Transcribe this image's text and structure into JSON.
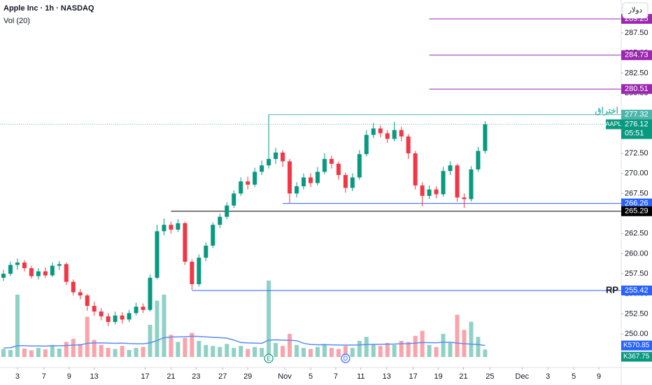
{
  "header": {
    "symbol_line": "Apple Inc · 1h · NASDAQ",
    "indicator": "Vol (20)",
    "currency_button": "دولار"
  },
  "chart_data": {
    "type": "candlestick",
    "up_color": "#089981",
    "down_color": "#f23645",
    "volume_ma_color": "#5b8def",
    "open": [
      257.0,
      257.5,
      258.6,
      258.9,
      258.2,
      257.2,
      257.8,
      257.3,
      258.5,
      258.7,
      256.5,
      255.2,
      254.8,
      253.5,
      252.8,
      252.2,
      251.5,
      252.3,
      251.8,
      252.6,
      253.4,
      253.0,
      257.0,
      262.8,
      263.6,
      263.0,
      263.8,
      259.0,
      256.2,
      259.5,
      261.0,
      263.6,
      264.6,
      266.0,
      267.5,
      269.0,
      268.6,
      270.2,
      271.0,
      271.8,
      272.6,
      271.5,
      267.5,
      268.4,
      269.5,
      268.8,
      270.2,
      271.8,
      271.2,
      269.8,
      268.2,
      269.5,
      272.4,
      274.8,
      275.6,
      275.0,
      274.3,
      275.4,
      274.6,
      272.5,
      268.5,
      267.2,
      268.0,
      267.4,
      270.3,
      271.0,
      267.0,
      266.8,
      270.5,
      272.8
    ],
    "high": [
      258.0,
      259.0,
      259.4,
      259.2,
      258.5,
      258.2,
      258.3,
      258.9,
      259.1,
      258.9,
      256.8,
      255.6,
      255.0,
      254.0,
      253.2,
      252.6,
      252.8,
      252.7,
      253.0,
      253.9,
      253.8,
      257.4,
      263.6,
      264.4,
      264.0,
      264.3,
      264.0,
      259.3,
      259.9,
      261.4,
      263.9,
      265.0,
      266.4,
      267.9,
      269.5,
      269.6,
      270.7,
      271.6,
      277.32,
      273.2,
      272.9,
      271.8,
      268.9,
      270.0,
      270.0,
      270.8,
      272.5,
      272.2,
      271.5,
      270.1,
      270.0,
      272.9,
      275.4,
      276.3,
      276.0,
      275.4,
      276.4,
      275.8,
      274.9,
      272.8,
      268.9,
      268.5,
      268.4,
      270.8,
      271.5,
      271.2,
      267.5,
      270.9,
      273.3,
      276.5
    ],
    "low": [
      256.6,
      257.2,
      258.0,
      257.8,
      256.9,
      256.8,
      257.0,
      257.1,
      258.0,
      256.1,
      254.8,
      254.3,
      252.9,
      252.3,
      251.7,
      251.0,
      251.2,
      251.3,
      251.5,
      252.3,
      252.6,
      252.8,
      256.8,
      262.3,
      262.5,
      262.7,
      258.6,
      255.5,
      255.9,
      259.1,
      260.7,
      263.2,
      264.3,
      265.7,
      267.2,
      268.0,
      268.3,
      269.8,
      270.6,
      271.2,
      270.8,
      266.3,
      267.0,
      268.0,
      268.3,
      268.5,
      269.9,
      270.6,
      269.2,
      267.6,
      267.8,
      269.2,
      272.1,
      274.4,
      274.5,
      273.8,
      274.0,
      274.0,
      271.8,
      268.0,
      265.9,
      266.8,
      266.9,
      267.1,
      269.8,
      266.5,
      265.7,
      266.5,
      270.2,
      272.5
    ],
    "close": [
      257.5,
      258.6,
      258.9,
      258.2,
      257.2,
      257.8,
      257.3,
      258.5,
      258.7,
      256.5,
      255.2,
      254.8,
      253.5,
      252.8,
      252.2,
      251.5,
      252.3,
      251.8,
      252.6,
      253.4,
      253.0,
      257.0,
      262.8,
      263.6,
      263.0,
      263.8,
      259.0,
      256.2,
      259.5,
      261.0,
      263.6,
      264.6,
      266.0,
      267.5,
      269.0,
      268.6,
      270.2,
      271.0,
      271.8,
      272.6,
      271.5,
      267.5,
      268.4,
      269.5,
      268.8,
      270.2,
      271.8,
      271.2,
      269.8,
      268.2,
      269.5,
      272.4,
      274.8,
      275.6,
      275.0,
      274.3,
      275.4,
      274.6,
      272.5,
      268.5,
      267.2,
      268.0,
      267.4,
      270.3,
      271.0,
      267.0,
      266.8,
      270.5,
      272.8,
      276.12
    ],
    "volume": [
      400,
      350,
      3100,
      420,
      330,
      450,
      380,
      600,
      420,
      750,
      900,
      650,
      2000,
      850,
      600,
      450,
      400,
      550,
      350,
      450,
      500,
      1600,
      2800,
      3100,
      1100,
      750,
      950,
      1200,
      800,
      600,
      550,
      500,
      650,
      450,
      550,
      400,
      500,
      450,
      3800,
      700,
      550,
      1150,
      600,
      450,
      400,
      500,
      650,
      450,
      400,
      550,
      450,
      800,
      1000,
      650,
      550,
      700,
      600,
      800,
      750,
      1050,
      1300,
      600,
      500,
      1150,
      700,
      2100,
      1350,
      1750,
      1000,
      367.75
    ],
    "volume_ma": [
      450,
      460,
      560,
      560,
      550,
      550,
      545,
      555,
      555,
      570,
      590,
      600,
      680,
      700,
      700,
      690,
      680,
      690,
      670,
      660,
      655,
      700,
      820,
      960,
      990,
      1000,
      1010,
      1030,
      1020,
      1000,
      980,
      960,
      940,
      840,
      720,
      700,
      690,
      680,
      840,
      850,
      840,
      830,
      810,
      680,
      620,
      610,
      615,
      605,
      595,
      590,
      595,
      600,
      620,
      625,
      630,
      640,
      645,
      660,
      665,
      690,
      720,
      715,
      710,
      730,
      735,
      690,
      660,
      640,
      620,
      570.85
    ],
    "volume_labels": {
      "ma": "K570.85",
      "volume": "K367.75"
    },
    "volume_lim": [
      0,
      4000
    ],
    "ticker": "AAPL",
    "countdown": "05:51",
    "ylim": [
      246.0,
      291.6
    ],
    "yticks": [
      {
        "value": 250,
        "label": "250.00"
      },
      {
        "value": 252.5,
        "label": "252.50"
      },
      {
        "value": 255,
        "label": "255.00"
      },
      {
        "value": 257.5,
        "label": "257.50"
      },
      {
        "value": 260,
        "label": "260.00"
      },
      {
        "value": 262.5,
        "label": "262.50"
      },
      {
        "value": 265,
        "label": "265.00"
      },
      {
        "value": 267.5,
        "label": "267.50"
      },
      {
        "value": 270,
        "label": "270.00"
      },
      {
        "value": 272.5,
        "label": "272.50"
      },
      {
        "value": 275,
        "label": "275.00"
      },
      {
        "value": 277.5,
        "label": "277.50"
      },
      {
        "value": 280,
        "label": "280.00"
      },
      {
        "value": 282.5,
        "label": "282.50"
      },
      {
        "value": 285,
        "label": "285.00"
      },
      {
        "value": 287.5,
        "label": "287.50"
      }
    ],
    "xlim": [
      -0.5,
      88.5
    ],
    "xticks": [
      {
        "value": 2.0,
        "label": "3"
      },
      {
        "value": 5.8,
        "label": "7"
      },
      {
        "value": 9.4,
        "label": "9"
      },
      {
        "value": 13.0,
        "label": "13"
      },
      {
        "value": 20.3,
        "label": "17"
      },
      {
        "value": 24.0,
        "label": "21"
      },
      {
        "value": 27.6,
        "label": "23"
      },
      {
        "value": 31.4,
        "label": "27"
      },
      {
        "value": 35.0,
        "label": "29"
      },
      {
        "value": 40.3,
        "label": "Nov"
      },
      {
        "value": 44.0,
        "label": "5"
      },
      {
        "value": 47.6,
        "label": "7"
      },
      {
        "value": 51.2,
        "label": "11"
      },
      {
        "value": 54.9,
        "label": "13"
      },
      {
        "value": 58.7,
        "label": "17"
      },
      {
        "value": 62.3,
        "label": "19"
      },
      {
        "value": 65.9,
        "label": "21"
      },
      {
        "value": 69.7,
        "label": "25"
      },
      {
        "value": 74.3,
        "label": "Dec"
      },
      {
        "value": 78.0,
        "label": "3"
      },
      {
        "value": 81.7,
        "label": "5"
      },
      {
        "value": 85.3,
        "label": "9"
      }
    ],
    "grid": false,
    "levels": [
      {
        "value": 289.25,
        "color": "#9c27b0",
        "from": 61
      },
      {
        "value": 284.73,
        "color": "#9c27b0",
        "from": 61
      },
      {
        "value": 280.51,
        "color": "#9c27b0",
        "from": 61
      },
      {
        "value": 277.32,
        "color": "#4db6ac",
        "from": 38,
        "annotation": "اختراق"
      },
      {
        "value": 266.26,
        "color": "#2962ff",
        "from": 40
      },
      {
        "value": 265.29,
        "color": "#000000",
        "from": 24
      },
      {
        "value": 255.42,
        "color": "#2962ff",
        "from": 27,
        "annotation": "RP"
      }
    ],
    "events": [
      {
        "label": "E",
        "index": 38,
        "color": "#089981"
      },
      {
        "label": "D",
        "index": 49,
        "color": "#2962ff"
      }
    ]
  }
}
